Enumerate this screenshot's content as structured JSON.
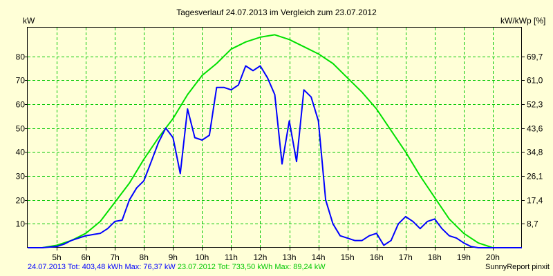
{
  "chart_data": {
    "type": "line",
    "title": "Tagesverlauf 24.07.2013 im Vergleich zum 23.07.2012",
    "ylabel_left": "kW",
    "ylabel_right": "kW/kWp [%]",
    "x_ticks": [
      "5h",
      "6h",
      "7h",
      "8h",
      "9h",
      "10h",
      "11h",
      "12h",
      "13h",
      "14h",
      "15h",
      "16h",
      "17h",
      "18h",
      "19h",
      "20h"
    ],
    "y_ticks_left": [
      "10",
      "20",
      "30",
      "40",
      "50",
      "60",
      "70",
      "80"
    ],
    "y_ticks_right": [
      "8,7",
      "17,4",
      "26,1",
      "34,8",
      "43,6",
      "52,3",
      "61,0",
      "69,7"
    ],
    "xlim": [
      4,
      21
    ],
    "ylim": [
      0,
      92
    ],
    "grid": true,
    "series": [
      {
        "name": "24.07.2013",
        "color": "#0000ff",
        "x": [
          4.0,
          4.5,
          5.0,
          5.25,
          5.5,
          5.75,
          6.0,
          6.25,
          6.5,
          6.75,
          7.0,
          7.25,
          7.5,
          7.75,
          8.0,
          8.25,
          8.5,
          8.75,
          9.0,
          9.25,
          9.5,
          9.75,
          10.0,
          10.25,
          10.5,
          10.75,
          11.0,
          11.25,
          11.5,
          11.75,
          12.0,
          12.25,
          12.5,
          12.75,
          13.0,
          13.25,
          13.5,
          13.75,
          14.0,
          14.25,
          14.5,
          14.75,
          15.0,
          15.25,
          15.5,
          15.75,
          16.0,
          16.25,
          16.5,
          16.75,
          17.0,
          17.25,
          17.5,
          17.75,
          18.0,
          18.25,
          18.5,
          18.75,
          19.0,
          19.25,
          19.5,
          20.0,
          21.0
        ],
        "values": [
          0,
          0,
          0.5,
          1.5,
          3,
          4,
          5,
          5.5,
          6,
          8,
          11,
          11.5,
          20,
          25,
          28,
          36,
          44,
          50,
          46,
          31,
          58,
          46,
          45,
          47,
          67,
          67,
          66,
          68,
          76,
          74,
          76,
          71,
          64,
          35,
          53,
          36,
          66,
          63,
          53,
          20,
          10,
          5,
          4,
          3,
          3,
          5,
          6,
          1,
          3,
          10,
          13,
          11,
          8,
          11,
          12,
          8,
          5,
          4,
          2,
          0.5,
          0,
          0,
          0
        ]
      },
      {
        "name": "23.07.2012",
        "color": "#00e000",
        "x": [
          4.0,
          4.5,
          5.0,
          5.5,
          6.0,
          6.5,
          7.0,
          7.5,
          8.0,
          8.5,
          9.0,
          9.5,
          10.0,
          10.5,
          11.0,
          11.5,
          12.0,
          12.5,
          13.0,
          13.5,
          14.0,
          14.5,
          15.0,
          15.5,
          16.0,
          16.5,
          17.0,
          17.5,
          18.0,
          18.5,
          19.0,
          19.5,
          20.0,
          20.5,
          21.0
        ],
        "values": [
          0,
          0,
          1,
          3,
          6,
          11,
          19,
          27,
          37,
          46,
          54,
          64,
          72,
          77,
          83,
          86,
          88,
          89,
          87,
          84,
          81,
          77,
          71,
          65,
          58,
          49,
          40,
          30,
          21,
          12,
          6,
          2,
          0,
          0,
          0
        ]
      }
    ],
    "legend": [
      {
        "color": "#0000ff",
        "text": "24.07.2013 Tot: 403,48 kWh Max: 76,37 kW"
      },
      {
        "color": "#00c800",
        "text": "23.07.2012 Tot: 733,50 kWh Max: 89,24 kW"
      }
    ],
    "credit": "SunnyReport pinxit"
  }
}
